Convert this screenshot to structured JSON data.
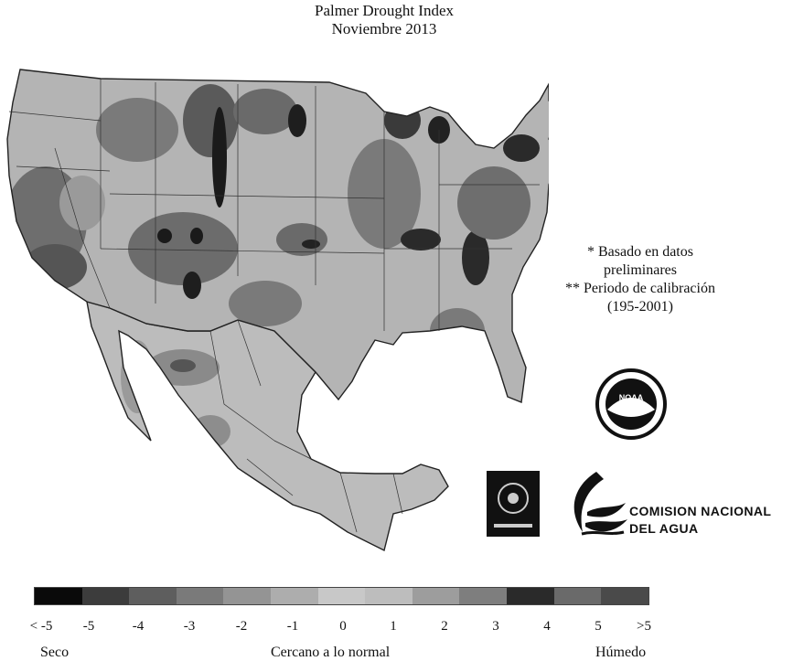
{
  "title": {
    "line1": "Palmer Drought Index",
    "line2": "Noviembre 2013"
  },
  "notes": {
    "line1": "* Basado en datos",
    "line2": "preliminares",
    "line3": "** Periodo de calibración",
    "line4": "(195-2001)"
  },
  "organization": {
    "line1": "COMISION NACIONAL",
    "line2": "DEL AGUA",
    "noaa_logo_text": "NOAA"
  },
  "legend": {
    "swatch_colors": [
      "#0a0a0a",
      "#3c3c3c",
      "#5e5e5e",
      "#7a7a7a",
      "#949494",
      "#adadad",
      "#c8c8c8",
      "#bdbdbd",
      "#9d9d9d",
      "#7e7e7e",
      "#2a2a2a",
      "#6a6a6a",
      "#4a4a4a"
    ],
    "ticks": [
      "< -5",
      "-5",
      "-4",
      "-3",
      "-2",
      "-1",
      "0",
      "1",
      "2",
      "3",
      "4",
      "5",
      ">5"
    ],
    "left_label": "Seco",
    "center_label": "Cercano a lo normal",
    "right_label": "Húmedo"
  },
  "colors": {
    "land_normal": "#b8b8b8",
    "dry_moderate": "#7a7a7a",
    "dry_severe": "#4a4a4a",
    "dry_extreme": "#141414",
    "wet": "#9a9a9a",
    "water": "#ffffff"
  }
}
